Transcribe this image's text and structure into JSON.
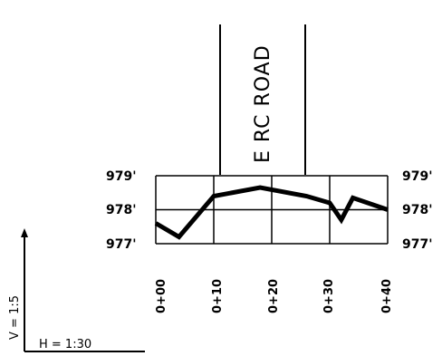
{
  "road": {
    "label": "E RC ROAD"
  },
  "profile": {
    "elevation_labels_left": [
      "979'",
      "978'",
      "977'"
    ],
    "elevation_labels_right": [
      "979'",
      "978'",
      "977'"
    ],
    "elevation_values": [
      979,
      978,
      977
    ],
    "station_labels": [
      "0+00",
      "0+10",
      "0+20",
      "0+30",
      "0+40"
    ],
    "station_values": [
      0,
      10,
      20,
      30,
      40
    ],
    "ground_line": {
      "stations": [
        0,
        4,
        10,
        18,
        26,
        30,
        32,
        34,
        40
      ],
      "elevations": [
        977.6,
        977.2,
        978.4,
        978.65,
        978.4,
        978.2,
        977.7,
        978.35,
        978.0
      ]
    }
  },
  "scales": {
    "vertical": "V = 1:5",
    "horizontal": "H = 1:30"
  }
}
